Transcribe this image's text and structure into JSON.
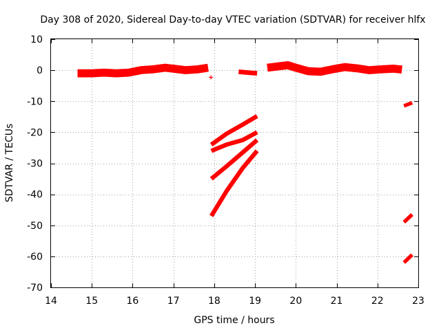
{
  "chart_data": {
    "type": "scatter",
    "title": "Day 308 of 2020, Sidereal Day-to-day VTEC variation (SDTVAR) for receiver hlfx",
    "xlabel": "GPS time / hours",
    "ylabel": "SDTVAR / TECUs",
    "xlim": [
      14,
      23
    ],
    "ylim": [
      -70,
      10
    ],
    "xticks": [
      14,
      15,
      16,
      17,
      18,
      19,
      20,
      21,
      22,
      23
    ],
    "yticks": [
      10,
      0,
      -10,
      -20,
      -30,
      -40,
      -50,
      -60,
      -70
    ],
    "grid": true,
    "legend": "none",
    "marker": "plus",
    "series_color": "#ff0000",
    "segments": [
      {
        "points": [
          [
            14.65,
            -1.0
          ],
          [
            15.0,
            -1.0
          ],
          [
            15.3,
            -0.8
          ],
          [
            15.6,
            -1.0
          ],
          [
            15.9,
            -0.8
          ],
          [
            16.2,
            0.0
          ],
          [
            16.5,
            0.3
          ],
          [
            16.8,
            0.8
          ],
          [
            17.0,
            0.5
          ],
          [
            17.3,
            0.0
          ],
          [
            17.6,
            0.3
          ],
          [
            17.85,
            0.8
          ]
        ],
        "width": 2.6
      },
      {
        "points": [
          [
            17.92,
            -2.3
          ]
        ],
        "width": 0.5
      },
      {
        "points": [
          [
            18.6,
            -0.5
          ],
          [
            18.85,
            -0.8
          ],
          [
            19.05,
            -1.0
          ]
        ],
        "width": 1.5
      },
      {
        "points": [
          [
            19.3,
            0.8
          ],
          [
            19.6,
            1.3
          ],
          [
            19.8,
            1.6
          ],
          [
            20.0,
            0.8
          ],
          [
            20.3,
            -0.3
          ],
          [
            20.6,
            -0.5
          ],
          [
            20.9,
            0.3
          ],
          [
            21.2,
            1.0
          ],
          [
            21.5,
            0.6
          ],
          [
            21.8,
            0.0
          ],
          [
            22.1,
            0.3
          ],
          [
            22.4,
            0.5
          ],
          [
            22.6,
            0.2
          ]
        ],
        "width": 2.6
      },
      {
        "points": [
          [
            17.93,
            -24.0
          ],
          [
            18.3,
            -20.5
          ],
          [
            18.7,
            -17.5
          ],
          [
            19.05,
            -14.8
          ]
        ],
        "width": 1.4
      },
      {
        "points": [
          [
            17.93,
            -26.0
          ],
          [
            18.3,
            -24.0
          ],
          [
            18.7,
            -22.5
          ],
          [
            19.05,
            -20.0
          ]
        ],
        "width": 1.4
      },
      {
        "points": [
          [
            17.93,
            -35.0
          ],
          [
            18.3,
            -31.0
          ],
          [
            18.7,
            -26.5
          ],
          [
            19.05,
            -22.5
          ]
        ],
        "width": 1.4
      },
      {
        "points": [
          [
            17.93,
            -47.0
          ],
          [
            18.3,
            -39.0
          ],
          [
            18.7,
            -31.5
          ],
          [
            19.05,
            -26.0
          ]
        ],
        "width": 1.4
      },
      {
        "points": [
          [
            22.65,
            -11.5
          ],
          [
            22.85,
            -10.5
          ]
        ],
        "width": 1.2
      },
      {
        "points": [
          [
            22.65,
            -49.0
          ],
          [
            22.85,
            -46.5
          ]
        ],
        "width": 1.2
      },
      {
        "points": [
          [
            22.65,
            -62.0
          ],
          [
            22.85,
            -59.5
          ]
        ],
        "width": 1.2
      }
    ]
  }
}
